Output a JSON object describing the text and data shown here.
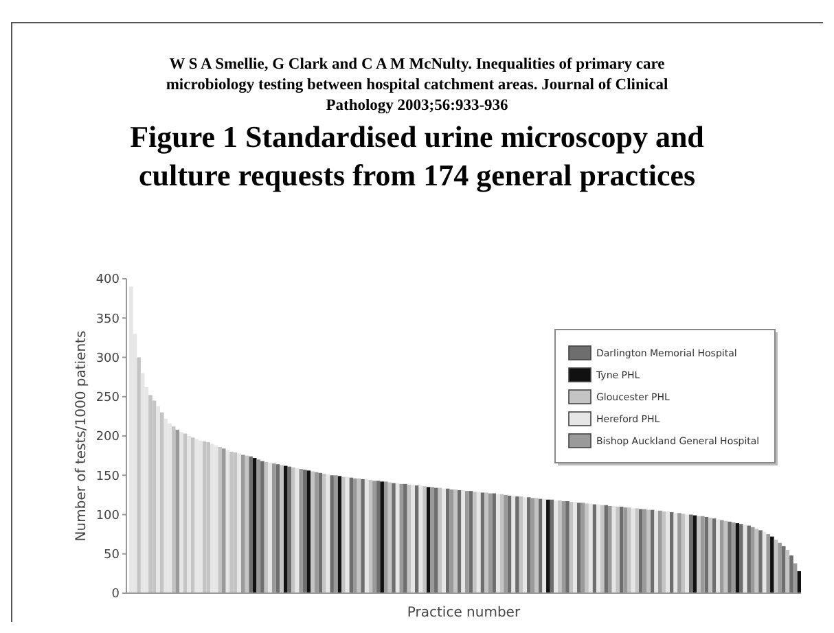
{
  "chart_data": {
    "type": "bar",
    "stacked": true,
    "subtitle": "W S A Smellie, G Clark and C A M McNulty. Inequalities of primary care microbiology testing between hospital catchment areas. Journal of Clinical Pathology 2003;56:933-936",
    "title": "Figure 1 Standardised urine microscopy and culture requests from 174 general practices",
    "xlabel": "Practice number",
    "ylabel": "Number of tests/1000 patients",
    "ylim": [
      0,
      400
    ],
    "yticks": [
      0,
      50,
      100,
      150,
      200,
      250,
      300,
      350,
      400
    ],
    "tick_labels": "y",
    "grid": false,
    "legend": "top right",
    "categories": [
      null,
      null,
      null,
      null,
      null,
      null,
      null,
      null,
      null,
      null,
      null,
      null,
      null,
      null,
      null,
      null,
      null,
      null,
      null,
      null,
      null,
      null,
      null,
      null,
      null,
      null,
      null,
      null,
      null,
      null,
      null,
      null,
      null,
      null,
      null,
      null,
      null,
      null,
      null,
      null,
      null,
      null,
      null,
      null,
      null,
      null,
      null,
      null,
      null,
      null,
      null,
      null,
      null,
      null,
      null,
      null,
      null,
      null,
      null,
      null,
      null,
      null,
      null,
      null,
      null,
      null,
      null,
      null,
      null,
      null,
      null,
      null,
      null,
      null,
      null,
      null,
      null,
      null,
      null,
      null,
      null,
      null,
      null,
      null,
      null,
      null,
      null,
      null,
      null,
      null,
      null,
      null,
      null,
      null,
      null,
      null,
      null,
      null,
      null,
      null,
      null,
      null,
      null,
      null,
      null,
      null,
      null,
      null,
      null,
      null,
      null,
      null,
      null,
      null,
      null,
      null,
      null,
      null,
      null,
      null,
      null,
      null,
      null,
      null,
      null,
      null,
      null,
      null,
      null,
      null,
      null,
      null,
      null,
      null,
      null,
      null,
      null,
      null,
      null,
      null,
      null,
      null,
      null,
      null,
      null,
      null,
      null,
      null,
      null,
      null,
      null,
      null,
      null,
      null,
      null,
      null,
      null,
      null,
      null,
      null,
      null,
      null,
      null,
      null,
      null,
      null,
      null,
      null,
      null,
      null,
      null,
      null,
      null,
      null
    ],
    "series": [
      {
        "name": "Darlington Memorial Hospital",
        "color": "#6e6e6e",
        "values": [
          null,
          null,
          null,
          null,
          null,
          null,
          null,
          null,
          null,
          null,
          null,
          null,
          null,
          null,
          null,
          null,
          null,
          null,
          null,
          null,
          null,
          null,
          null,
          null,
          null,
          null,
          null,
          null,
          null,
          null,
          null,
          174,
          null,
          null,
          168,
          null,
          null,
          null,
          164,
          null,
          null,
          161,
          null,
          null,
          null,
          157,
          null,
          null,
          null,
          153,
          null,
          null,
          150,
          null,
          null,
          null,
          null,
          147,
          null,
          null,
          145,
          null,
          null,
          null,
          143,
          null,
          null,
          null,
          140,
          null,
          null,
          139,
          null,
          null,
          137,
          null,
          null,
          null,
          null,
          134,
          null,
          null,
          133,
          null,
          null,
          131,
          null,
          null,
          130,
          null,
          null,
          128,
          null,
          null,
          127,
          null,
          null,
          null,
          124,
          null,
          123,
          null,
          null,
          122,
          null,
          null,
          120,
          null,
          null,
          119,
          null,
          null,
          null,
          117,
          null,
          null,
          115,
          null,
          null,
          null,
          113,
          null,
          null,
          112,
          null,
          null,
          null,
          110,
          null,
          null,
          null,
          null,
          107,
          null,
          null,
          106,
          null,
          null,
          null,
          null,
          103,
          null,
          null,
          null,
          null,
          100,
          null,
          null,
          null,
          97,
          null,
          95,
          null,
          null,
          null,
          91,
          null,
          null,
          88,
          null,
          86,
          null,
          null,
          80,
          null,
          null,
          null,
          null,
          null,
          60,
          null,
          48,
          null,
          null
        ]
      },
      {
        "name": "Tyne PHL",
        "color": "#111111",
        "values": [
          null,
          null,
          null,
          null,
          null,
          null,
          null,
          null,
          null,
          null,
          null,
          null,
          null,
          null,
          null,
          null,
          null,
          null,
          null,
          null,
          null,
          null,
          null,
          null,
          null,
          null,
          null,
          null,
          null,
          null,
          null,
          null,
          172,
          null,
          null,
          null,
          null,
          null,
          null,
          null,
          162,
          null,
          null,
          null,
          null,
          null,
          156,
          null,
          null,
          null,
          null,
          null,
          null,
          null,
          149,
          null,
          null,
          null,
          null,
          null,
          null,
          null,
          null,
          null,
          null,
          142,
          null,
          null,
          null,
          null,
          null,
          null,
          null,
          null,
          null,
          null,
          null,
          135,
          null,
          null,
          null,
          null,
          null,
          null,
          null,
          null,
          null,
          null,
          null,
          null,
          null,
          null,
          null,
          null,
          null,
          null,
          null,
          null,
          null,
          null,
          null,
          null,
          null,
          null,
          null,
          null,
          null,
          null,
          119,
          null,
          null,
          null,
          null,
          null,
          null,
          null,
          null,
          null,
          null,
          null,
          null,
          null,
          null,
          null,
          null,
          null,
          null,
          null,
          null,
          null,
          null,
          null,
          null,
          null,
          null,
          null,
          null,
          null,
          null,
          null,
          null,
          null,
          null,
          null,
          null,
          null,
          99,
          null,
          null,
          null,
          null,
          null,
          null,
          null,
          null,
          null,
          null,
          89,
          null,
          null,
          null,
          null,
          null,
          null,
          null,
          null,
          72,
          null,
          null,
          null,
          null,
          null,
          null,
          28
        ]
      },
      {
        "name": "Gloucester PHL",
        "color": "#c4c4c4",
        "values": [
          null,
          null,
          300,
          null,
          null,
          252,
          245,
          null,
          230,
          null,
          null,
          212,
          null,
          null,
          203,
          null,
          198,
          null,
          null,
          193,
          192,
          null,
          null,
          186,
          null,
          null,
          180,
          179,
          null,
          null,
          175,
          null,
          null,
          null,
          null,
          167,
          null,
          null,
          null,
          163,
          null,
          null,
          160,
          null,
          null,
          null,
          null,
          155,
          null,
          null,
          152,
          null,
          null,
          null,
          null,
          148,
          null,
          null,
          null,
          146,
          null,
          null,
          144,
          null,
          null,
          null,
          null,
          141,
          null,
          null,
          null,
          null,
          138,
          null,
          null,
          null,
          136,
          null,
          null,
          null,
          134,
          null,
          null,
          null,
          132,
          null,
          null,
          null,
          null,
          129,
          null,
          null,
          128,
          null,
          null,
          null,
          126,
          null,
          null,
          null,
          null,
          123,
          null,
          null,
          null,
          121,
          null,
          null,
          null,
          null,
          null,
          118,
          null,
          null,
          116,
          null,
          null,
          null,
          114,
          null,
          null,
          null,
          112,
          null,
          null,
          null,
          110,
          null,
          null,
          109,
          null,
          108,
          null,
          null,
          106,
          null,
          null,
          null,
          104,
          null,
          null,
          null,
          null,
          101,
          null,
          null,
          null,
          98,
          null,
          null,
          96,
          null,
          null,
          null,
          92,
          null,
          null,
          null,
          null,
          null,
          null,
          null,
          82,
          null,
          null,
          null,
          null,
          68,
          null,
          null,
          55,
          null,
          null,
          null
        ]
      },
      {
        "name": "Hereford PHL",
        "color": "#e6e6e6",
        "values": [
          390,
          330,
          null,
          280,
          262,
          null,
          null,
          238,
          null,
          222,
          216,
          null,
          null,
          205,
          null,
          200,
          null,
          196,
          194,
          null,
          null,
          190,
          188,
          null,
          null,
          182,
          null,
          null,
          178,
          null,
          null,
          null,
          null,
          null,
          null,
          null,
          166,
          null,
          null,
          null,
          null,
          null,
          null,
          159,
          null,
          null,
          null,
          null,
          null,
          null,
          null,
          151,
          null,
          null,
          null,
          null,
          148,
          null,
          null,
          null,
          null,
          145,
          null,
          null,
          null,
          null,
          null,
          null,
          null,
          140,
          null,
          null,
          null,
          138,
          null,
          137,
          null,
          null,
          null,
          null,
          null,
          133,
          null,
          null,
          null,
          null,
          131,
          null,
          null,
          null,
          129,
          null,
          null,
          null,
          null,
          126,
          null,
          null,
          null,
          124,
          null,
          null,
          122,
          null,
          null,
          null,
          null,
          120,
          null,
          null,
          118,
          null,
          null,
          null,
          null,
          116,
          null,
          null,
          null,
          114,
          null,
          113,
          null,
          null,
          null,
          111,
          null,
          null,
          null,
          null,
          108,
          null,
          null,
          null,
          null,
          null,
          105,
          null,
          null,
          104,
          null,
          102,
          null,
          null,
          100,
          null,
          null,
          null,
          null,
          null,
          null,
          null,
          94,
          null,
          null,
          null,
          null,
          null,
          null,
          87,
          null,
          null,
          null,
          null,
          78,
          null,
          null,
          null,
          null,
          null,
          null,
          null,
          null,
          null
        ]
      },
      {
        "name": "Bishop Auckland General Hospital",
        "color": "#9a9a9a",
        "values": [
          null,
          null,
          null,
          null,
          null,
          null,
          null,
          null,
          null,
          null,
          null,
          null,
          208,
          null,
          null,
          null,
          null,
          null,
          null,
          null,
          null,
          null,
          null,
          null,
          184,
          null,
          null,
          null,
          null,
          176,
          null,
          null,
          null,
          170,
          null,
          null,
          null,
          165,
          null,
          null,
          null,
          null,
          null,
          null,
          158,
          null,
          null,
          null,
          154,
          null,
          null,
          null,
          null,
          150,
          null,
          null,
          null,
          null,
          146,
          null,
          null,
          null,
          null,
          143,
          null,
          null,
          142,
          null,
          null,
          null,
          139,
          null,
          null,
          null,
          null,
          null,
          null,
          null,
          135,
          null,
          null,
          null,
          null,
          132,
          null,
          null,
          null,
          130,
          null,
          null,
          null,
          null,
          null,
          127,
          null,
          null,
          null,
          125,
          null,
          null,
          null,
          null,
          null,
          null,
          121,
          null,
          null,
          null,
          null,
          null,
          null,
          null,
          117,
          null,
          null,
          null,
          null,
          115,
          null,
          null,
          null,
          null,
          null,
          null,
          111,
          null,
          null,
          null,
          109,
          null,
          null,
          null,
          null,
          107,
          null,
          null,
          null,
          105,
          null,
          null,
          null,
          null,
          102,
          null,
          null,
          null,
          null,
          null,
          98,
          null,
          null,
          null,
          null,
          93,
          null,
          null,
          90,
          null,
          null,
          null,
          null,
          84,
          null,
          null,
          null,
          75,
          null,
          null,
          64,
          null,
          null,
          null,
          38,
          null
        ]
      }
    ]
  }
}
